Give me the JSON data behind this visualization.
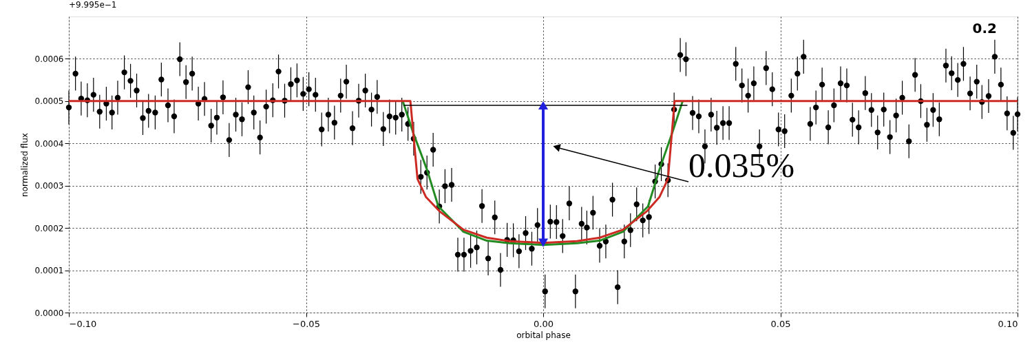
{
  "chart_data": {
    "type": "scatter",
    "xlabel": "orbital phase",
    "ylabel": "normalized flux",
    "annotations": [
      "+9.995e−1",
      "0.2",
      "0.035%"
    ],
    "xlim": [
      -0.1,
      0.1
    ],
    "ylim": [
      0,
      0.0007
    ],
    "xticks": [
      {
        "value": -0.1,
        "label": "−0.10"
      },
      {
        "value": -0.05,
        "label": "−0.05"
      },
      {
        "value": 0,
        "label": "0.00"
      },
      {
        "value": 0.05,
        "label": "0.05"
      },
      {
        "value": 0.1,
        "label": "0.10"
      }
    ],
    "yticks": [
      {
        "value": 0,
        "label": "0.0000"
      },
      {
        "value": 0.0001,
        "label": "0.0001"
      },
      {
        "value": 0.0002,
        "label": "0.0002"
      },
      {
        "value": 0.0003,
        "label": "0.0003"
      },
      {
        "value": 0.0004,
        "label": "0.0004"
      },
      {
        "value": 0.0005,
        "label": "0.0005"
      },
      {
        "value": 0.0006,
        "label": "0.0006"
      }
    ],
    "grid": true,
    "marker": "circle",
    "series": [
      {
        "color": "#000000",
        "x": [
          -0.1,
          -0.0986,
          -0.0974,
          -0.0961,
          -0.0948,
          -0.0935,
          -0.0921,
          -0.0909,
          -0.0897,
          -0.0883,
          -0.087,
          -0.0857,
          -0.0844,
          -0.0832,
          -0.0818,
          -0.0805,
          -0.0791,
          -0.0778,
          -0.0766,
          -0.0753,
          -0.074,
          -0.0727,
          -0.0714,
          -0.07,
          -0.0688,
          -0.0675,
          -0.0662,
          -0.0648,
          -0.0635,
          -0.0622,
          -0.061,
          -0.0597,
          -0.0584,
          -0.057,
          -0.0558,
          -0.0545,
          -0.0532,
          -0.0519,
          -0.0506,
          -0.0494,
          -0.048,
          -0.0467,
          -0.0453,
          -0.044,
          -0.0427,
          -0.0415,
          -0.0402,
          -0.0389,
          -0.0375,
          -0.0362,
          -0.035,
          -0.0337,
          -0.0324,
          -0.0311,
          -0.0298,
          -0.0285,
          -0.0273,
          -0.0258,
          -0.0245,
          -0.0232,
          -0.0219,
          -0.0207,
          -0.0193,
          -0.018,
          -0.0167,
          -0.0153,
          -0.014,
          -0.0129,
          -0.0116,
          -0.0102,
          -0.009,
          -0.0076,
          -0.0063,
          -0.0051,
          -0.0037,
          -0.0024,
          -0.0012,
          0.0004,
          0.0015,
          0.0028,
          0.0041,
          0.0055,
          0.0068,
          0.0081,
          0.0092,
          0.0105,
          0.0119,
          0.0132,
          0.0146,
          0.0157,
          0.0171,
          0.0184,
          0.0197,
          0.021,
          0.0223,
          0.0236,
          0.0249,
          0.0263,
          0.0276,
          0.0289,
          0.0301,
          0.0315,
          0.0328,
          0.0341,
          0.0354,
          0.0366,
          0.0379,
          0.0392,
          0.0406,
          0.0419,
          0.0432,
          0.0444,
          0.0456,
          0.047,
          0.0483,
          0.0496,
          0.0509,
          0.0523,
          0.0536,
          0.0549,
          0.0563,
          0.0575,
          0.0588,
          0.0601,
          0.0613,
          0.0627,
          0.064,
          0.0652,
          0.0665,
          0.0679,
          0.0692,
          0.0705,
          0.0718,
          0.0731,
          0.0744,
          0.0757,
          0.0771,
          0.0784,
          0.0796,
          0.0809,
          0.0822,
          0.0835,
          0.0849,
          0.0861,
          0.0874,
          0.0886,
          0.09,
          0.0914,
          0.0925,
          0.0939,
          0.0952,
          0.0965,
          0.0978,
          0.0991,
          0.1
        ],
        "values": [
          0.000485,
          0.000565,
          0.000506,
          0.000502,
          0.000515,
          0.000475,
          0.000494,
          0.000473,
          0.000508,
          0.000568,
          0.000548,
          0.000525,
          0.00046,
          0.000477,
          0.000473,
          0.000551,
          0.00049,
          0.000464,
          0.000599,
          0.000545,
          0.000565,
          0.000494,
          0.000505,
          0.000442,
          0.000461,
          0.000509,
          0.000408,
          0.000468,
          0.000457,
          0.000533,
          0.000473,
          0.000414,
          0.000487,
          0.000502,
          0.00057,
          0.000501,
          0.00054,
          0.000549,
          0.000517,
          0.000528,
          0.000515,
          0.000433,
          0.000468,
          0.000449,
          0.000513,
          0.000546,
          0.000436,
          0.000501,
          0.000525,
          0.00048,
          0.00051,
          0.000434,
          0.000464,
          0.000461,
          0.000468,
          0.000446,
          0.000411,
          0.000321,
          0.000331,
          0.000385,
          0.000251,
          0.000299,
          0.000302,
          0.000137,
          0.000137,
          0.000146,
          0.000154,
          0.000252,
          0.000128,
          0.000225,
          0.000101,
          0.000172,
          0.000171,
          0.000145,
          0.000188,
          0.000151,
          0.000207,
          5e-05,
          0.000215,
          0.000214,
          0.000181,
          0.000258,
          5e-05,
          0.00021,
          0.000201,
          0.000236,
          0.000158,
          0.000168,
          0.000267,
          6e-05,
          0.000168,
          0.000195,
          0.000256,
          0.000218,
          0.000226,
          0.00031,
          0.000351,
          0.000313,
          0.00048,
          0.000609,
          0.000599,
          0.000472,
          0.000464,
          0.000393,
          0.000468,
          0.000437,
          0.000448,
          0.000448,
          0.000588,
          0.000537,
          0.000513,
          0.000542,
          0.000393,
          0.000578,
          0.000528,
          0.000433,
          0.000429,
          0.000513,
          0.000565,
          0.000605,
          0.000446,
          0.000485,
          0.000539,
          0.000438,
          0.00049,
          0.000542,
          0.000537,
          0.000456,
          0.000438,
          0.000519,
          0.000479,
          0.000426,
          0.00048,
          0.000415,
          0.000466,
          0.000508,
          0.000405,
          0.000562,
          0.0005,
          0.000444,
          0.000479,
          0.000457,
          0.000584,
          0.000566,
          0.00055,
          0.000588,
          0.000518,
          0.000546,
          0.000498,
          0.000512,
          0.000605,
          0.000539,
          0.000471,
          0.000425,
          0.000469
        ],
        "errors": [
          4e-05,
          4e-05,
          4e-05,
          4e-05,
          4e-05,
          4e-05,
          4e-05,
          4e-05,
          4e-05,
          4e-05,
          4e-05,
          4e-05,
          4e-05,
          4e-05,
          4e-05,
          4e-05,
          4e-05,
          4e-05,
          4e-05,
          4e-05,
          4e-05,
          4e-05,
          4e-05,
          4e-05,
          4e-05,
          4e-05,
          4e-05,
          4e-05,
          4e-05,
          4e-05,
          4e-05,
          4e-05,
          4e-05,
          4e-05,
          4e-05,
          4e-05,
          4e-05,
          4e-05,
          4e-05,
          4e-05,
          4e-05,
          4e-05,
          4e-05,
          4e-05,
          4e-05,
          4e-05,
          4e-05,
          4e-05,
          4e-05,
          4e-05,
          4e-05,
          4e-05,
          4e-05,
          4e-05,
          4e-05,
          4e-05,
          4e-05,
          4e-05,
          4e-05,
          4e-05,
          4e-05,
          4e-05,
          4e-05,
          4e-05,
          4e-05,
          4e-05,
          4e-05,
          4e-05,
          4e-05,
          4e-05,
          4e-05,
          4e-05,
          4e-05,
          4e-05,
          4e-05,
          4e-05,
          4e-05,
          4e-05,
          4e-05,
          4e-05,
          4e-05,
          4e-05,
          4e-05,
          4e-05,
          4e-05,
          4e-05,
          4e-05,
          4e-05,
          4e-05,
          4e-05,
          4e-05,
          4e-05,
          4e-05,
          4e-05,
          4e-05,
          4e-05,
          4e-05,
          4e-05,
          4e-05,
          4e-05,
          4e-05,
          4e-05,
          4e-05,
          4e-05,
          4e-05,
          4e-05,
          4e-05,
          4e-05,
          4e-05,
          4e-05,
          4e-05,
          4e-05,
          4e-05,
          4e-05,
          4e-05,
          4e-05,
          4e-05,
          4e-05,
          4e-05,
          4e-05,
          4e-05,
          4e-05,
          4e-05,
          4e-05,
          4e-05,
          4e-05,
          4e-05,
          4e-05,
          4e-05,
          4e-05,
          4e-05,
          4e-05,
          4e-05,
          4e-05,
          4e-05,
          4e-05,
          4e-05,
          4e-05,
          4e-05,
          4e-05,
          4e-05,
          4e-05,
          4e-05,
          4e-05,
          4e-05,
          4e-05,
          4e-05,
          4e-05,
          4e-05,
          4e-05,
          4e-05,
          4e-05,
          4e-05,
          4e-05,
          4e-05
        ]
      },
      {
        "type": "line",
        "marker": "none",
        "line_style": "solid",
        "color": "#228b22",
        "x": [
          -0.0296,
          -0.0274,
          -0.0245,
          -0.0221,
          -0.0168,
          -0.0119,
          -0.0071,
          0,
          0.0071,
          0.0119,
          0.0168,
          0.0221,
          0.0245,
          0.0272,
          0.0294
        ],
        "values": [
          0.0005,
          0.000425,
          0.000338,
          0.000251,
          0.000191,
          0.00017,
          0.000164,
          0.00016,
          0.000164,
          0.00017,
          0.000191,
          0.000251,
          0.000338,
          0.000425,
          0.0005
        ]
      },
      {
        "type": "line",
        "marker": "none",
        "line_style": "solid",
        "color": "#cc2a22",
        "x": [
          -0.1,
          -0.028,
          -0.0265,
          -0.0247,
          -0.0219,
          -0.0168,
          -0.0119,
          -0.0071,
          0,
          0.0071,
          0.0119,
          0.0168,
          0.0219,
          0.0245,
          0.0263,
          0.0277,
          0.1
        ],
        "values": [
          0.0005,
          0.0005,
          0.000316,
          0.000273,
          0.00024,
          0.000196,
          0.000177,
          0.000169,
          0.000165,
          0.000169,
          0.000177,
          0.000196,
          0.00024,
          0.000273,
          0.000316,
          0.0005,
          0.0005
        ]
      },
      {
        "type": "line",
        "marker": "none",
        "line_style": "solid",
        "color": "#000000",
        "x": [
          -0.0294,
          0.0304
        ],
        "values": [
          0.00049,
          0.00049
        ]
      }
    ]
  }
}
